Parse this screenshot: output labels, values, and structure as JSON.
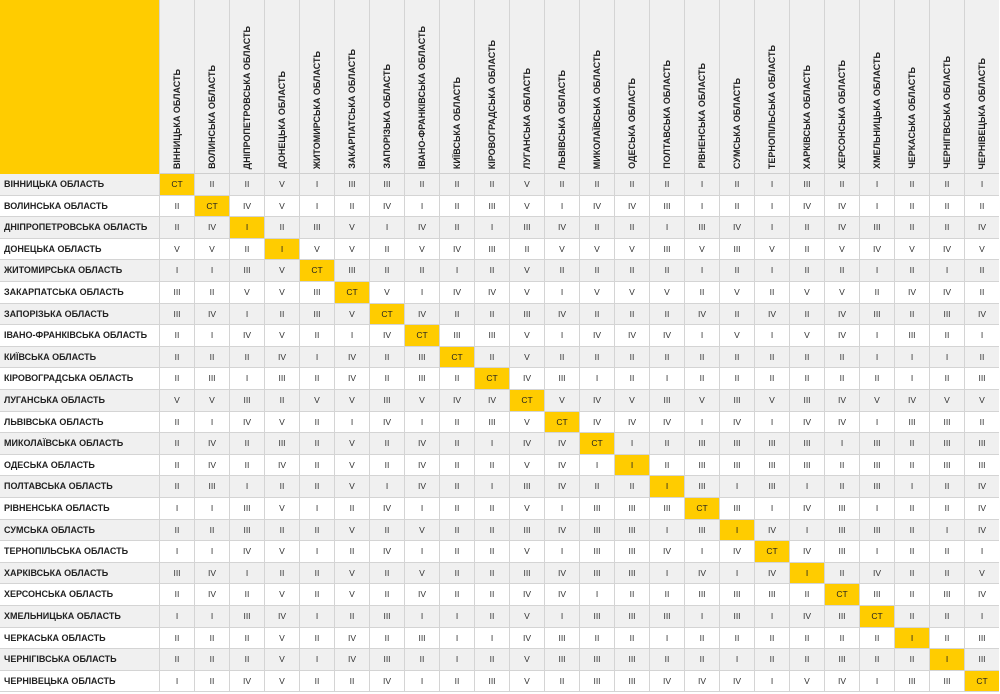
{
  "regions": [
    "ВІННИЦЬКА ОБЛАСТЬ",
    "ВОЛИНСЬКА ОБЛАСТЬ",
    "ДНІПРОПЕТРОВСЬКА ОБЛАСТЬ",
    "ДОНЕЦЬКА ОБЛАСТЬ",
    "ЖИТОМИРСЬКА ОБЛАСТЬ",
    "ЗАКАРПАТСЬКА ОБЛАСТЬ",
    "ЗАПОРІЗЬКА ОБЛАСТЬ",
    "ІВАНО-ФРАНКІВСЬКА ОБЛАСТЬ",
    "КИЇВСЬКА ОБЛАСТЬ",
    "КІРОВОГРАДСЬКА ОБЛАСТЬ",
    "ЛУГАНСЬКА ОБЛАСТЬ",
    "ЛЬВІВСЬКА ОБЛАСТЬ",
    "МИКОЛАЇВСЬКА ОБЛАСТЬ",
    "ОДЕСЬКА ОБЛАСТЬ",
    "ПОЛТАВСЬКА ОБЛАСТЬ",
    "РІВНЕНСЬКА ОБЛАСТЬ",
    "СУМСЬКА ОБЛАСТЬ",
    "ТЕРНОПІЛЬСЬКА ОБЛАСТЬ",
    "ХАРКІВСЬКА ОБЛАСТЬ",
    "ХЕРСОНСЬКА ОБЛАСТЬ",
    "ХМЕЛЬНИЦЬКА ОБЛАСТЬ",
    "ЧЕРКАСЬКА ОБЛАСТЬ",
    "ЧЕРНІГІВСЬКА ОБЛАСТЬ",
    "ЧЕРНІВЕЦЬКА ОБЛАСТЬ"
  ],
  "rows": [
    [
      "CT",
      "II",
      "II",
      "V",
      "I",
      "III",
      "III",
      "II",
      "II",
      "II",
      "V",
      "II",
      "II",
      "II",
      "II",
      "I",
      "II",
      "I",
      "III",
      "II",
      "I",
      "II",
      "II",
      "I"
    ],
    [
      "II",
      "CT",
      "IV",
      "V",
      "I",
      "II",
      "IV",
      "I",
      "II",
      "III",
      "V",
      "I",
      "IV",
      "IV",
      "III",
      "I",
      "II",
      "I",
      "IV",
      "IV",
      "I",
      "II",
      "II",
      "II"
    ],
    [
      "II",
      "IV",
      "I",
      "II",
      "III",
      "V",
      "I",
      "IV",
      "II",
      "I",
      "III",
      "IV",
      "II",
      "II",
      "I",
      "III",
      "IV",
      "I",
      "II",
      "IV",
      "III",
      "II",
      "II",
      "IV"
    ],
    [
      "V",
      "V",
      "II",
      "I",
      "V",
      "V",
      "II",
      "V",
      "IV",
      "III",
      "II",
      "V",
      "V",
      "V",
      "III",
      "V",
      "III",
      "V",
      "II",
      "V",
      "IV",
      "V",
      "IV",
      "V"
    ],
    [
      "I",
      "I",
      "III",
      "V",
      "CT",
      "III",
      "II",
      "II",
      "I",
      "II",
      "V",
      "II",
      "II",
      "II",
      "II",
      "I",
      "II",
      "I",
      "II",
      "II",
      "I",
      "II",
      "I",
      "II"
    ],
    [
      "III",
      "II",
      "V",
      "V",
      "III",
      "CT",
      "V",
      "I",
      "IV",
      "IV",
      "V",
      "I",
      "V",
      "V",
      "V",
      "II",
      "V",
      "II",
      "V",
      "V",
      "II",
      "IV",
      "IV",
      "II"
    ],
    [
      "III",
      "IV",
      "I",
      "II",
      "III",
      "V",
      "CT",
      "IV",
      "II",
      "II",
      "III",
      "IV",
      "II",
      "II",
      "II",
      "IV",
      "II",
      "IV",
      "II",
      "IV",
      "III",
      "II",
      "III",
      "IV"
    ],
    [
      "II",
      "I",
      "IV",
      "V",
      "II",
      "I",
      "IV",
      "CT",
      "III",
      "III",
      "V",
      "I",
      "IV",
      "IV",
      "IV",
      "I",
      "V",
      "I",
      "V",
      "IV",
      "I",
      "III",
      "II",
      "I"
    ],
    [
      "II",
      "II",
      "II",
      "IV",
      "I",
      "IV",
      "II",
      "III",
      "CT",
      "II",
      "V",
      "II",
      "II",
      "II",
      "II",
      "II",
      "II",
      "II",
      "II",
      "II",
      "I",
      "I",
      "I",
      "II"
    ],
    [
      "II",
      "III",
      "I",
      "III",
      "II",
      "IV",
      "II",
      "III",
      "II",
      "CT",
      "IV",
      "III",
      "I",
      "II",
      "I",
      "II",
      "II",
      "II",
      "II",
      "II",
      "II",
      "I",
      "II",
      "III"
    ],
    [
      "V",
      "V",
      "III",
      "II",
      "V",
      "V",
      "III",
      "V",
      "IV",
      "IV",
      "CT",
      "V",
      "IV",
      "V",
      "III",
      "V",
      "III",
      "V",
      "III",
      "IV",
      "V",
      "IV",
      "V",
      "V"
    ],
    [
      "II",
      "I",
      "IV",
      "V",
      "II",
      "I",
      "IV",
      "I",
      "II",
      "III",
      "V",
      "CT",
      "IV",
      "IV",
      "IV",
      "I",
      "IV",
      "I",
      "IV",
      "IV",
      "I",
      "III",
      "III",
      "II"
    ],
    [
      "II",
      "IV",
      "II",
      "III",
      "II",
      "V",
      "II",
      "IV",
      "II",
      "I",
      "IV",
      "IV",
      "CT",
      "I",
      "II",
      "III",
      "III",
      "III",
      "III",
      "I",
      "III",
      "II",
      "III",
      "III"
    ],
    [
      "II",
      "IV",
      "II",
      "IV",
      "II",
      "V",
      "II",
      "IV",
      "II",
      "II",
      "V",
      "IV",
      "I",
      "I",
      "II",
      "III",
      "III",
      "III",
      "III",
      "II",
      "III",
      "II",
      "III",
      "III"
    ],
    [
      "II",
      "III",
      "I",
      "II",
      "II",
      "V",
      "I",
      "IV",
      "II",
      "I",
      "III",
      "IV",
      "II",
      "II",
      "I",
      "III",
      "I",
      "III",
      "I",
      "II",
      "III",
      "I",
      "II",
      "IV"
    ],
    [
      "I",
      "I",
      "III",
      "V",
      "I",
      "II",
      "IV",
      "I",
      "II",
      "II",
      "V",
      "I",
      "III",
      "III",
      "III",
      "CT",
      "III",
      "I",
      "IV",
      "III",
      "I",
      "II",
      "II",
      "IV"
    ],
    [
      "II",
      "II",
      "III",
      "II",
      "II",
      "V",
      "II",
      "V",
      "II",
      "II",
      "III",
      "IV",
      "III",
      "III",
      "I",
      "III",
      "I",
      "IV",
      "I",
      "III",
      "III",
      "II",
      "I",
      "IV"
    ],
    [
      "I",
      "I",
      "IV",
      "V",
      "I",
      "II",
      "IV",
      "I",
      "II",
      "II",
      "V",
      "I",
      "III",
      "III",
      "IV",
      "I",
      "IV",
      "CT",
      "IV",
      "III",
      "I",
      "II",
      "II",
      "I"
    ],
    [
      "III",
      "IV",
      "I",
      "II",
      "II",
      "V",
      "II",
      "V",
      "II",
      "II",
      "III",
      "IV",
      "III",
      "III",
      "I",
      "IV",
      "I",
      "IV",
      "I",
      "II",
      "IV",
      "II",
      "II",
      "V"
    ],
    [
      "II",
      "IV",
      "II",
      "V",
      "II",
      "V",
      "II",
      "IV",
      "II",
      "II",
      "IV",
      "IV",
      "I",
      "II",
      "II",
      "III",
      "III",
      "III",
      "II",
      "CT",
      "III",
      "II",
      "III",
      "IV"
    ],
    [
      "I",
      "I",
      "III",
      "IV",
      "I",
      "II",
      "III",
      "I",
      "I",
      "II",
      "V",
      "I",
      "III",
      "III",
      "III",
      "I",
      "III",
      "I",
      "IV",
      "III",
      "CT",
      "II",
      "II",
      "I"
    ],
    [
      "II",
      "II",
      "II",
      "V",
      "II",
      "IV",
      "II",
      "III",
      "I",
      "I",
      "IV",
      "III",
      "II",
      "II",
      "I",
      "II",
      "II",
      "II",
      "II",
      "II",
      "II",
      "I",
      "II",
      "III"
    ],
    [
      "II",
      "II",
      "II",
      "V",
      "I",
      "IV",
      "III",
      "II",
      "I",
      "II",
      "V",
      "III",
      "III",
      "III",
      "II",
      "II",
      "I",
      "II",
      "II",
      "III",
      "II",
      "II",
      "I",
      "III"
    ],
    [
      "I",
      "II",
      "IV",
      "V",
      "II",
      "II",
      "IV",
      "I",
      "II",
      "III",
      "V",
      "II",
      "III",
      "III",
      "IV",
      "IV",
      "IV",
      "I",
      "V",
      "IV",
      "I",
      "III",
      "III",
      "CT"
    ]
  ],
  "colors": {
    "highlight": "#ffcc00",
    "row_alt": "#f0f0f0",
    "grid_line": "#d4d4d4"
  }
}
